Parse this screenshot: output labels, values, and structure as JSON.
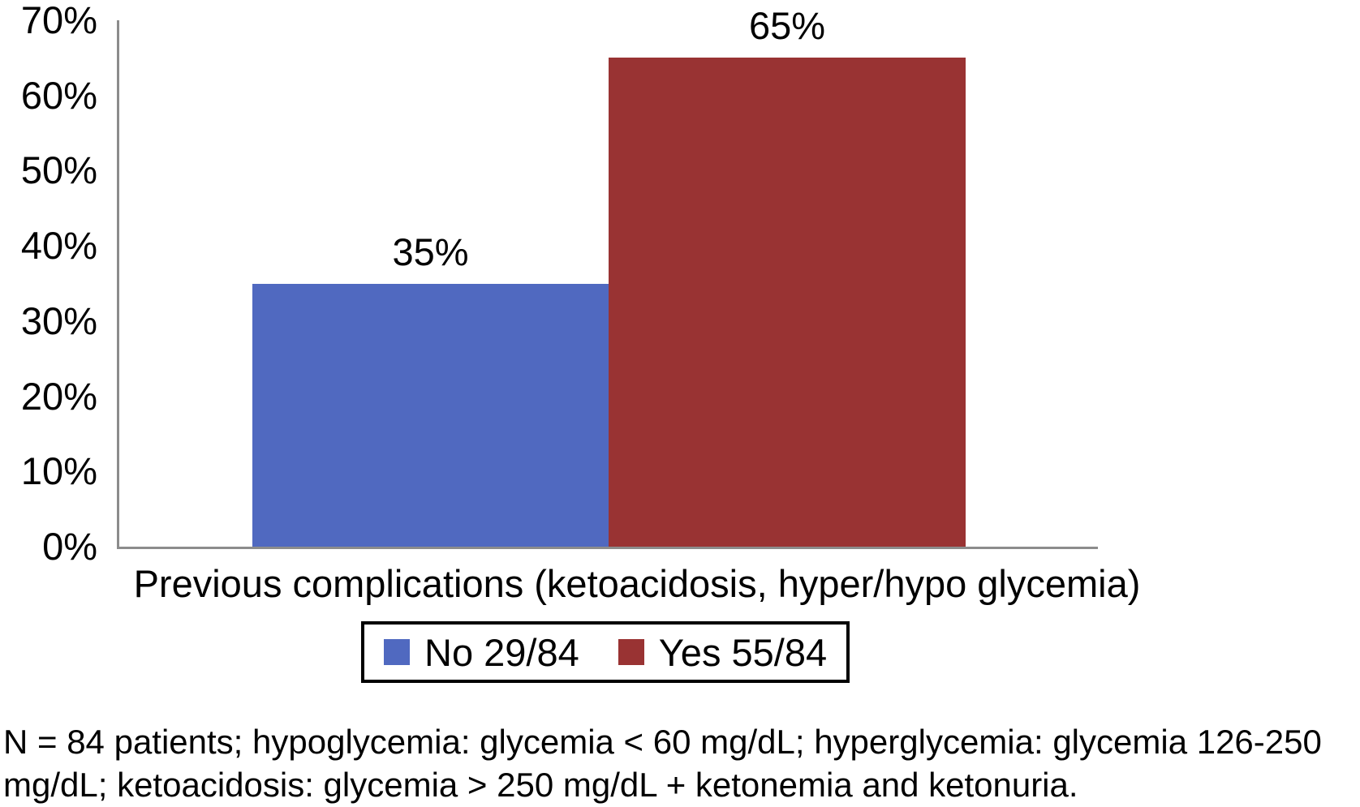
{
  "chart_data": {
    "type": "bar",
    "title": "",
    "categories": [
      "Previous complications (ketoacidosis, hyper/hypo glycemia)"
    ],
    "series": [
      {
        "name": "No 29/84",
        "values": [
          35
        ],
        "color": "#5069c0"
      },
      {
        "name": "Yes 55/84",
        "values": [
          65
        ],
        "color": "#993333"
      }
    ],
    "bar_labels": [
      "35%",
      "65%"
    ],
    "xlabel": "Previous complications (ketoacidosis, hyper/hypo glycemia)",
    "ylabel": "",
    "ylim": [
      0,
      70
    ],
    "ytick_values": [
      70,
      60,
      50,
      40,
      30,
      20,
      10,
      0
    ],
    "yticks": [
      "70%",
      "60%",
      "50%",
      "40%",
      "30%",
      "20%",
      "10%",
      "0%"
    ],
    "grid": false,
    "legend_position": "bottom-boxed"
  },
  "footnote": {
    "lines": [
      "N = 84 patients; hypoglycemia: glycemia < 60 mg/dL; hyperglycemia: glycemia 126-250",
      "mg/dL; ketoacidosis: glycemia > 250 mg/dL + ketonemia and ketonuria."
    ]
  },
  "colors": {
    "bar_no": "#5069c0",
    "bar_yes": "#993333",
    "axis_line": "#8c8c8c",
    "legend_border": "#000000",
    "text": "#000000"
  }
}
